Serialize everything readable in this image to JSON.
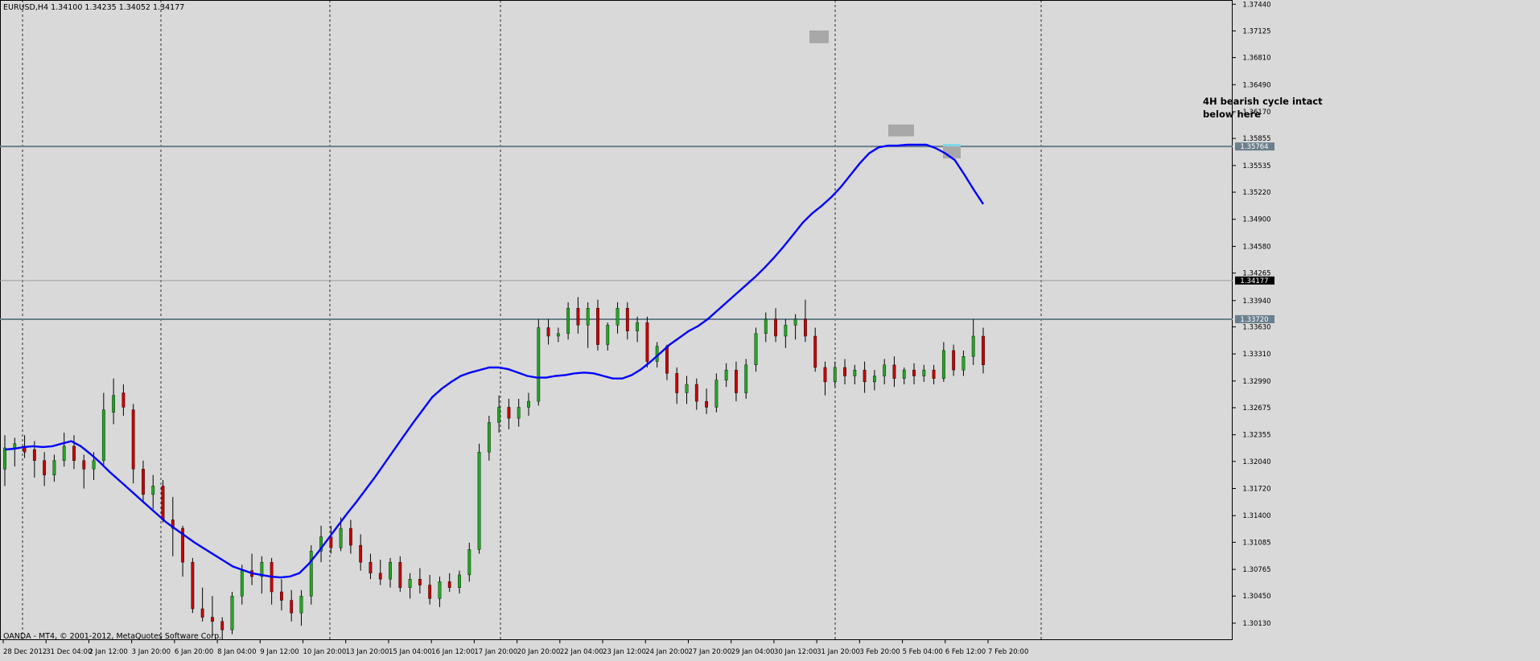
{
  "header": {
    "symbol_info": "EURUSD,H4  1.34100 1.34235 1.34052 1.34177"
  },
  "footer": {
    "copyright": "OANDA - MT4, © 2001-2012, MetaQuotes Software Corp."
  },
  "annotation": {
    "line1": "4H bearish cycle intact",
    "line2": "below here"
  },
  "colors": {
    "background": "#d9d9d9",
    "bull": "#22a822",
    "bear": "#c80000",
    "wick": "#000000",
    "ma": "#0000ff",
    "level_line": "#6b7f8c",
    "highlight_box": "#a8a8a8",
    "highlight_box_recent": "#7fd9e6"
  },
  "chart_data": {
    "type": "candlestick",
    "symbol": "EURUSD",
    "timeframe": "H4",
    "last_bar": {
      "open": 1.341,
      "high": 1.34235,
      "low": 1.34052,
      "close": 1.34177
    },
    "y_range": [
      1.2993,
      1.3749
    ],
    "y_ticks": [
      "1.37440",
      "1.37125",
      "1.36810",
      "1.36490",
      "1.36170",
      "1.35855",
      "1.35535",
      "1.35220",
      "1.34900",
      "1.34580",
      "1.34265",
      "1.33940",
      "1.33630",
      "1.33310",
      "1.32990",
      "1.32675",
      "1.32355",
      "1.32040",
      "1.31720",
      "1.31400",
      "1.31085",
      "1.30765",
      "1.30450",
      "1.30130"
    ],
    "x_tick_labels": [
      "28 Dec 2012",
      "31 Dec 04:00",
      "2 Jan 12:00",
      "3 Jan 20:00",
      "6 Jan 20:00",
      "8 Jan 04:00",
      "9 Jan 12:00",
      "10 Jan 20:00",
      "13 Jan 20:00",
      "15 Jan 04:00",
      "16 Jan 12:00",
      "17 Jan 20:00",
      "20 Jan 20:00",
      "22 Jan 04:00",
      "23 Jan 12:00",
      "24 Jan 20:00",
      "27 Jan 20:00",
      "29 Jan 04:00",
      "30 Jan 12:00",
      "31 Jan 20:00",
      "3 Feb 20:00",
      "5 Feb 04:00",
      "6 Feb 12:00",
      "7 Feb 20:00"
    ],
    "price_labels": [
      {
        "price": 1.3576,
        "text": "1.35764",
        "style": "level"
      },
      {
        "price": 1.34177,
        "text": "1.34177",
        "style": "current"
      },
      {
        "price": 1.3372,
        "text": "1.33720",
        "style": "level"
      }
    ],
    "horizontal_levels": [
      1.3576,
      1.3372
    ],
    "current_price_line": 1.34177,
    "moving_average": [
      1.3218,
      1.3219,
      1.3221,
      1.3222,
      1.3221,
      1.3222,
      1.3225,
      1.3228,
      1.3222,
      1.3213,
      1.3203,
      1.3192,
      1.3182,
      1.3172,
      1.3162,
      1.3152,
      1.3142,
      1.3132,
      1.3124,
      1.3116,
      1.3108,
      1.3101,
      1.3094,
      1.3087,
      1.308,
      1.3076,
      1.3072,
      1.307,
      1.3068,
      1.3067,
      1.3068,
      1.3072,
      1.3083,
      1.3097,
      1.3112,
      1.3127,
      1.3142,
      1.3156,
      1.3171,
      1.3186,
      1.3202,
      1.3218,
      1.3234,
      1.325,
      1.3265,
      1.328,
      1.329,
      1.3298,
      1.3305,
      1.3309,
      1.3312,
      1.3315,
      1.3315,
      1.3313,
      1.3309,
      1.3305,
      1.3303,
      1.3303,
      1.3305,
      1.3306,
      1.3308,
      1.3309,
      1.3308,
      1.3305,
      1.3302,
      1.3302,
      1.3306,
      1.3313,
      1.3322,
      1.3332,
      1.3342,
      1.335,
      1.3358,
      1.3364,
      1.3372,
      1.3382,
      1.3392,
      1.3402,
      1.3412,
      1.3422,
      1.3433,
      1.3445,
      1.3458,
      1.3472,
      1.3486,
      1.3497,
      1.3506,
      1.3516,
      1.3528,
      1.3542,
      1.3556,
      1.3568,
      1.3575,
      1.3577,
      1.3577,
      1.3578,
      1.3578,
      1.3578,
      1.3574,
      1.3568,
      1.356,
      1.3543,
      1.3525,
      1.3508
    ],
    "candles": [
      [
        1.3195,
        1.3235,
        1.3175,
        1.322
      ],
      [
        1.322,
        1.3232,
        1.3198,
        1.3225
      ],
      [
        1.3222,
        1.3235,
        1.3208,
        1.3215
      ],
      [
        1.3218,
        1.3228,
        1.3185,
        1.3205
      ],
      [
        1.3205,
        1.3215,
        1.3175,
        1.3188
      ],
      [
        1.3188,
        1.3212,
        1.318,
        1.3205
      ],
      [
        1.3205,
        1.3238,
        1.3198,
        1.3222
      ],
      [
        1.3222,
        1.3235,
        1.3195,
        1.3205
      ],
      [
        1.3205,
        1.3212,
        1.3172,
        1.3195
      ],
      [
        1.3195,
        1.3215,
        1.3182,
        1.3205
      ],
      [
        1.3205,
        1.3285,
        1.3198,
        1.3265
      ],
      [
        1.3262,
        1.3302,
        1.3248,
        1.3282
      ],
      [
        1.3285,
        1.3295,
        1.3258,
        1.3268
      ],
      [
        1.3265,
        1.3272,
        1.3178,
        1.3195
      ],
      [
        1.3195,
        1.3205,
        1.3155,
        1.3165
      ],
      [
        1.3165,
        1.3188,
        1.3148,
        1.3175
      ],
      [
        1.3175,
        1.3182,
        1.3132,
        1.3135
      ],
      [
        1.3135,
        1.3162,
        1.3092,
        1.3125
      ],
      [
        1.3125,
        1.3128,
        1.3068,
        1.3085
      ],
      [
        1.3085,
        1.309,
        1.3025,
        1.303
      ],
      [
        1.303,
        1.3055,
        1.3015,
        1.302
      ],
      [
        1.302,
        1.3045,
        1.2998,
        1.3015
      ],
      [
        1.3015,
        1.302,
        1.2992,
        1.3005
      ],
      [
        1.3005,
        1.305,
        1.3,
        1.3045
      ],
      [
        1.3045,
        1.3082,
        1.3035,
        1.3075
      ],
      [
        1.3075,
        1.3095,
        1.3058,
        1.3068
      ],
      [
        1.3068,
        1.3092,
        1.3048,
        1.3085
      ],
      [
        1.3085,
        1.309,
        1.3035,
        1.305
      ],
      [
        1.305,
        1.3065,
        1.3028,
        1.304
      ],
      [
        1.304,
        1.3052,
        1.3015,
        1.3025
      ],
      [
        1.3025,
        1.3052,
        1.301,
        1.3045
      ],
      [
        1.3045,
        1.3105,
        1.3035,
        1.3098
      ],
      [
        1.3098,
        1.3128,
        1.3085,
        1.3115
      ],
      [
        1.3115,
        1.3128,
        1.3095,
        1.3102
      ],
      [
        1.3102,
        1.3138,
        1.3098,
        1.3125
      ],
      [
        1.3125,
        1.3135,
        1.3095,
        1.3105
      ],
      [
        1.3105,
        1.3118,
        1.3075,
        1.3085
      ],
      [
        1.3085,
        1.3095,
        1.3065,
        1.3072
      ],
      [
        1.3072,
        1.3088,
        1.3058,
        1.3065
      ],
      [
        1.3065,
        1.309,
        1.3055,
        1.3085
      ],
      [
        1.3085,
        1.3092,
        1.305,
        1.3055
      ],
      [
        1.3055,
        1.3072,
        1.3042,
        1.3065
      ],
      [
        1.3065,
        1.3078,
        1.3048,
        1.3058
      ],
      [
        1.3058,
        1.307,
        1.3035,
        1.3042
      ],
      [
        1.3042,
        1.3068,
        1.3032,
        1.3062
      ],
      [
        1.3062,
        1.3072,
        1.305,
        1.3055
      ],
      [
        1.3055,
        1.3075,
        1.3048,
        1.307
      ],
      [
        1.307,
        1.3108,
        1.3062,
        1.31
      ],
      [
        1.31,
        1.3225,
        1.3095,
        1.3215
      ],
      [
        1.3215,
        1.3258,
        1.3205,
        1.325
      ],
      [
        1.325,
        1.3282,
        1.3238,
        1.3268
      ],
      [
        1.3268,
        1.3278,
        1.3242,
        1.3255
      ],
      [
        1.3255,
        1.3278,
        1.3245,
        1.3268
      ],
      [
        1.3268,
        1.3285,
        1.3258,
        1.3275
      ],
      [
        1.3275,
        1.3372,
        1.327,
        1.3362
      ],
      [
        1.3362,
        1.3372,
        1.3342,
        1.3352
      ],
      [
        1.3352,
        1.3362,
        1.3345,
        1.3355
      ],
      [
        1.3355,
        1.3392,
        1.3348,
        1.3385
      ],
      [
        1.3385,
        1.3398,
        1.3355,
        1.3365
      ],
      [
        1.3365,
        1.3392,
        1.3338,
        1.3385
      ],
      [
        1.3385,
        1.3395,
        1.3335,
        1.3342
      ],
      [
        1.3342,
        1.3368,
        1.3335,
        1.3365
      ],
      [
        1.3365,
        1.3392,
        1.3355,
        1.3385
      ],
      [
        1.3385,
        1.3392,
        1.3348,
        1.3358
      ],
      [
        1.3358,
        1.3375,
        1.3345,
        1.3368
      ],
      [
        1.3368,
        1.3375,
        1.3315,
        1.3322
      ],
      [
        1.3322,
        1.3345,
        1.3315,
        1.334
      ],
      [
        1.334,
        1.3342,
        1.33,
        1.3308
      ],
      [
        1.3308,
        1.3315,
        1.3272,
        1.3285
      ],
      [
        1.3285,
        1.3305,
        1.3272,
        1.3295
      ],
      [
        1.3295,
        1.3302,
        1.3265,
        1.3275
      ],
      [
        1.3275,
        1.329,
        1.326,
        1.3268
      ],
      [
        1.3268,
        1.3308,
        1.3262,
        1.33
      ],
      [
        1.33,
        1.332,
        1.3292,
        1.3312
      ],
      [
        1.3312,
        1.3322,
        1.3275,
        1.3285
      ],
      [
        1.3285,
        1.3325,
        1.3278,
        1.3318
      ],
      [
        1.3318,
        1.3362,
        1.331,
        1.3355
      ],
      [
        1.3355,
        1.338,
        1.3345,
        1.3372
      ],
      [
        1.3372,
        1.3385,
        1.3345,
        1.3352
      ],
      [
        1.3352,
        1.3372,
        1.3338,
        1.3365
      ],
      [
        1.3365,
        1.3378,
        1.3348,
        1.3372
      ],
      [
        1.3372,
        1.3395,
        1.3345,
        1.3352
      ],
      [
        1.3352,
        1.3362,
        1.331,
        1.3315
      ],
      [
        1.3315,
        1.3322,
        1.3282,
        1.3298
      ],
      [
        1.3298,
        1.3322,
        1.3292,
        1.3315
      ],
      [
        1.3315,
        1.3325,
        1.3295,
        1.3305
      ],
      [
        1.3305,
        1.3318,
        1.3295,
        1.3312
      ],
      [
        1.3312,
        1.3322,
        1.3285,
        1.3298
      ],
      [
        1.3298,
        1.3312,
        1.3288,
        1.3305
      ],
      [
        1.3305,
        1.3325,
        1.3295,
        1.3318
      ],
      [
        1.3318,
        1.3328,
        1.3292,
        1.3302
      ],
      [
        1.3302,
        1.3315,
        1.3295,
        1.3312
      ],
      [
        1.3312,
        1.332,
        1.3295,
        1.3305
      ],
      [
        1.3305,
        1.3318,
        1.3298,
        1.3312
      ],
      [
        1.3312,
        1.3318,
        1.3295,
        1.3302
      ],
      [
        1.3302,
        1.3345,
        1.3298,
        1.3335
      ],
      [
        1.3335,
        1.3342,
        1.3305,
        1.3312
      ],
      [
        1.3312,
        1.3335,
        1.3305,
        1.3328
      ],
      [
        1.3328,
        1.3372,
        1.3318,
        1.3352
      ],
      [
        1.3352,
        1.3362,
        1.3308,
        1.3318
      ]
    ],
    "candle_slots": {
      "count": 212,
      "visible_from": 0,
      "note_slots": "candles array lists bars in order"
    }
  }
}
